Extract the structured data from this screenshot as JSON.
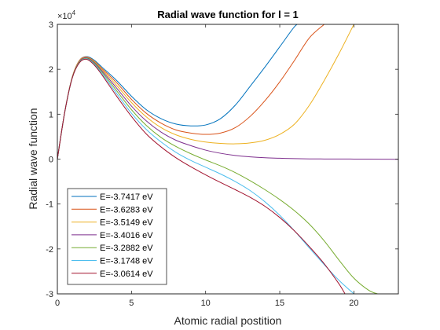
{
  "chart_data": {
    "type": "line",
    "title": "Radial wave function for l = 1",
    "xlabel": "Atomic radial postition",
    "ylabel": "Radial wave function",
    "y_exponent_base": "×10",
    "y_exponent_power": "4",
    "xlim": [
      0,
      23
    ],
    "ylim": [
      -3,
      3
    ],
    "xticks": [
      0,
      5,
      10,
      15,
      20
    ],
    "yticks": [
      -3,
      -2,
      -1,
      0,
      1,
      2,
      3
    ],
    "grid": false,
    "legend_position": "bottom-left",
    "series": [
      {
        "name": "E=-3.7417 eV",
        "color": "#0072BD",
        "x": [
          0,
          0.5,
          1,
          1.5,
          2,
          2.5,
          3,
          4,
          5,
          6,
          7,
          8,
          9,
          10,
          11,
          12,
          13,
          14,
          15,
          16,
          16.3
        ],
        "y": [
          0,
          1.05,
          1.82,
          2.2,
          2.28,
          2.2,
          2.05,
          1.75,
          1.4,
          1.1,
          0.9,
          0.78,
          0.74,
          0.76,
          0.9,
          1.2,
          1.62,
          2.05,
          2.5,
          2.95,
          3.0
        ]
      },
      {
        "name": "E=-3.6283 eV",
        "color": "#D95319",
        "x": [
          0,
          0.5,
          1,
          1.5,
          2,
          2.5,
          3,
          4,
          5,
          6,
          7,
          8,
          9,
          10,
          11,
          12,
          13,
          14,
          15,
          16,
          17,
          18
        ],
        "y": [
          0,
          1.05,
          1.82,
          2.2,
          2.27,
          2.18,
          2.02,
          1.7,
          1.33,
          1.02,
          0.8,
          0.65,
          0.58,
          0.55,
          0.58,
          0.7,
          0.95,
          1.3,
          1.72,
          2.2,
          2.7,
          3.0
        ]
      },
      {
        "name": "E=-3.5149 eV",
        "color": "#EDB120",
        "x": [
          0,
          0.5,
          1,
          1.5,
          2,
          2.5,
          3,
          4,
          5,
          6,
          7,
          8,
          9,
          10,
          11,
          12,
          13,
          14,
          15,
          16,
          17,
          18,
          19,
          20
        ],
        "y": [
          0,
          1.05,
          1.82,
          2.19,
          2.26,
          2.17,
          2.0,
          1.64,
          1.26,
          0.94,
          0.7,
          0.54,
          0.44,
          0.38,
          0.35,
          0.34,
          0.36,
          0.42,
          0.55,
          0.78,
          1.2,
          1.75,
          2.35,
          3.0
        ]
      },
      {
        "name": "E=-3.4016 eV",
        "color": "#7E2F8E",
        "x": [
          0,
          0.5,
          1,
          1.5,
          2,
          2.5,
          3,
          4,
          5,
          6,
          7,
          8,
          9,
          10,
          11,
          12,
          13,
          14,
          15,
          16,
          17,
          18,
          19,
          20,
          21,
          22,
          23
        ],
        "y": [
          0,
          1.05,
          1.81,
          2.18,
          2.25,
          2.15,
          1.97,
          1.58,
          1.18,
          0.85,
          0.6,
          0.42,
          0.3,
          0.2,
          0.13,
          0.08,
          0.05,
          0.03,
          0.02,
          0.01,
          0.005,
          0.003,
          0.002,
          0.001,
          0.0,
          -0.002,
          -0.005
        ]
      },
      {
        "name": "E=-3.2882 eV",
        "color": "#77AC30",
        "x": [
          0,
          0.5,
          1,
          1.5,
          2,
          2.5,
          3,
          4,
          5,
          6,
          7,
          8,
          9,
          10,
          11,
          12,
          13,
          14,
          15,
          16,
          17,
          18,
          19,
          20,
          21,
          21.6
        ],
        "y": [
          0,
          1.05,
          1.81,
          2.17,
          2.24,
          2.13,
          1.94,
          1.52,
          1.1,
          0.75,
          0.48,
          0.28,
          0.12,
          -0.02,
          -0.15,
          -0.3,
          -0.48,
          -0.68,
          -0.9,
          -1.15,
          -1.45,
          -1.82,
          -2.25,
          -2.65,
          -2.92,
          -3.0
        ]
      },
      {
        "name": "E=-3.1748 eV",
        "color": "#4DBEEE",
        "x": [
          0,
          0.5,
          1,
          1.5,
          2,
          2.5,
          3,
          4,
          5,
          6,
          7,
          8,
          9,
          10,
          11,
          12,
          13,
          14,
          15,
          16,
          17,
          18,
          19,
          20
        ],
        "y": [
          0,
          1.05,
          1.8,
          2.16,
          2.23,
          2.11,
          1.91,
          1.46,
          1.02,
          0.66,
          0.38,
          0.15,
          -0.03,
          -0.18,
          -0.33,
          -0.5,
          -0.7,
          -0.95,
          -1.25,
          -1.6,
          -1.98,
          -2.35,
          -2.7,
          -3.0
        ]
      },
      {
        "name": "E=-3.0614 eV",
        "color": "#A2142F",
        "x": [
          0,
          0.5,
          1,
          1.5,
          2,
          2.5,
          3,
          4,
          5,
          6,
          7,
          8,
          9,
          10,
          11,
          12,
          13,
          14,
          15,
          16,
          17,
          18,
          19,
          19.4
        ],
        "y": [
          0,
          1.05,
          1.8,
          2.15,
          2.22,
          2.09,
          1.88,
          1.4,
          0.95,
          0.56,
          0.27,
          0.03,
          -0.17,
          -0.35,
          -0.52,
          -0.68,
          -0.85,
          -1.05,
          -1.3,
          -1.6,
          -1.95,
          -2.33,
          -2.78,
          -3.0
        ]
      }
    ]
  }
}
